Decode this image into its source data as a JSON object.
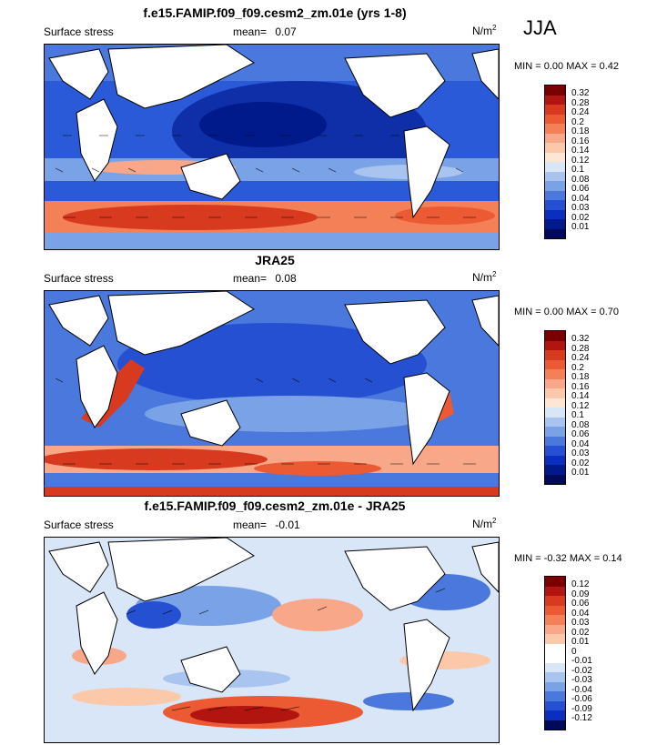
{
  "season": "JJA",
  "units_base": "N/m",
  "units_exp": "2",
  "panels": [
    {
      "title": "f.e15.FAMIP.f09_f09.cesm2_zm.01e (yrs 1-8)",
      "variable": "Surface stress",
      "mean_label": "mean=",
      "mean_value": "0.07",
      "min_label": "MIN =",
      "min_value": "0.00",
      "max_label": "MAX =",
      "max_value": "0.42",
      "colorbar_labels": [
        "0.32",
        "0.28",
        "0.24",
        "0.2",
        "0.18",
        "0.16",
        "0.14",
        "0.12",
        "0.1",
        "0.08",
        "0.06",
        "0.04",
        "0.03",
        "0.02",
        "0.01"
      ]
    },
    {
      "title": "JRA25",
      "variable": "Surface stress",
      "mean_label": "mean=",
      "mean_value": "0.08",
      "min_label": "MIN =",
      "min_value": "0.00",
      "max_label": "MAX =",
      "max_value": "0.70",
      "colorbar_labels": [
        "0.32",
        "0.28",
        "0.24",
        "0.2",
        "0.18",
        "0.16",
        "0.14",
        "0.12",
        "0.1",
        "0.08",
        "0.06",
        "0.04",
        "0.03",
        "0.02",
        "0.01"
      ]
    },
    {
      "title": "f.e15.FAMIP.f09_f09.cesm2_zm.01e - JRA25",
      "variable": "Surface stress",
      "mean_label": "mean=",
      "mean_value": "-0.01",
      "min_label": "MIN =",
      "min_value": "-0.32",
      "max_label": "MAX =",
      "max_value": "0.14",
      "colorbar_labels": [
        "0.12",
        "0.09",
        "0.06",
        "0.04",
        "0.03",
        "0.02",
        "0.01",
        "0",
        "-0.01",
        "-0.02",
        "-0.03",
        "-0.04",
        "-0.06",
        "-0.09",
        "-0.12"
      ]
    }
  ],
  "colors": {
    "abs_scale": [
      "#7a0000",
      "#b2140f",
      "#d73a1e",
      "#eb5a32",
      "#f48058",
      "#f8a888",
      "#fcc8aa",
      "#fde6d4",
      "#d8e6f8",
      "#a8c4ef",
      "#7aa2e6",
      "#4a78dc",
      "#2550d2",
      "#0a2fc0",
      "#001a8c",
      "#000a5a"
    ],
    "diff_scale": [
      "#7a0000",
      "#b2140f",
      "#d73a1e",
      "#eb5a32",
      "#f48058",
      "#f8a888",
      "#fcc8aa",
      "#ffffff",
      "#ffffff",
      "#d8e6f8",
      "#a8c4ef",
      "#7aa2e6",
      "#4a78dc",
      "#2550d2",
      "#0a2fc0",
      "#000a5a"
    ]
  }
}
